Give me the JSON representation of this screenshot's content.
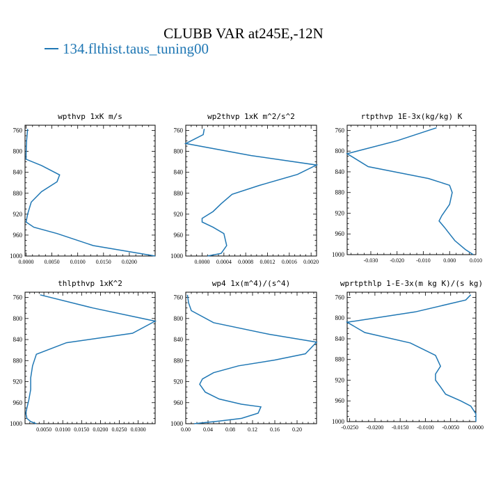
{
  "title": "CLUBB VAR at245E,-12N",
  "legend": {
    "label": "134.flthist.taus_tuning00",
    "color": "#1f77b4"
  },
  "chart_data": [
    {
      "type": "line",
      "title": "wpthvp  1xK m/s",
      "ylim": [
        1000,
        750
      ],
      "yticks": [
        760,
        800,
        840,
        880,
        920,
        960,
        1000
      ],
      "xlim": [
        -0.0002,
        0.025
      ],
      "xticks": [
        0,
        0.005,
        0.01,
        0.015,
        0.02
      ],
      "xtick_labels": [
        "0.0000",
        "0.0050",
        "0.0100",
        "0.0150",
        "0.0200"
      ],
      "series": [
        {
          "x": [
            0.0003,
            0.0001,
            0.0,
            0.0,
            0.003,
            0.0065,
            0.006,
            0.003,
            0.001,
            0.0003,
            0.0,
            0.0015,
            0.006,
            0.013,
            0.025
          ],
          "y": [
            757,
            780,
            805,
            815,
            827,
            845,
            858,
            877,
            897,
            920,
            935,
            945,
            957,
            980,
            1000
          ]
        }
      ]
    },
    {
      "type": "line",
      "title": "wp2thvp  1xK m^2/s^2",
      "ylim": [
        1000,
        750
      ],
      "yticks": [
        760,
        800,
        840,
        880,
        920,
        960,
        1000
      ],
      "xlim": [
        -0.0003,
        0.0021
      ],
      "xticks": [
        0,
        0.0004,
        0.0008,
        0.0012,
        0.0016,
        0.002
      ],
      "xtick_labels": [
        "0.0000",
        "0.0004",
        "0.0008",
        "0.0012",
        "0.0016",
        "0.0020"
      ],
      "series": [
        {
          "x": [
            4e-05,
            2e-05,
            -0.0003,
            0.0009,
            0.0021,
            0.00175,
            0.00105,
            0.00055,
            0.00035,
            0.0002,
            0.0,
            0.0,
            0.0002,
            0.0004,
            0.00045,
            0.00035,
            0.0001
          ],
          "y": [
            757,
            768,
            785,
            808,
            826,
            844,
            865,
            882,
            900,
            915,
            928,
            935,
            945,
            957,
            980,
            995,
            1000
          ]
        }
      ]
    },
    {
      "type": "line",
      "title": "rtpthvp  1E-3x(kg/kg) K",
      "ylim": [
        1000,
        750
      ],
      "yticks": [
        760,
        800,
        840,
        880,
        920,
        960,
        1000
      ],
      "xlim": [
        -0.039,
        0.01
      ],
      "xticks": [
        -0.03,
        -0.02,
        -0.01,
        0,
        0.01
      ],
      "xtick_labels": [
        "-0.030",
        "-0.020",
        "-0.010",
        "0.000",
        "0.010"
      ],
      "series": [
        {
          "x": [
            -0.005,
            -0.02,
            -0.039,
            -0.031,
            -0.008,
            0.0,
            0.001,
            0.0,
            -0.003,
            -0.004,
            -0.002,
            0.0,
            0.002,
            0.006,
            0.009
          ],
          "y": [
            755,
            780,
            805,
            830,
            853,
            866,
            880,
            903,
            925,
            935,
            947,
            960,
            973,
            990,
            1000
          ]
        }
      ]
    },
    {
      "type": "line",
      "title": "thlpthvp  1xK^2",
      "ylim": [
        1000,
        750
      ],
      "yticks": [
        760,
        800,
        840,
        880,
        920,
        960,
        1000
      ],
      "xlim": [
        0.0,
        0.0345
      ],
      "xticks": [
        0.005,
        0.01,
        0.015,
        0.02,
        0.025,
        0.03
      ],
      "xtick_labels": [
        "0.0050",
        "0.0100",
        "0.0150",
        "0.0200",
        "0.0250",
        "0.0300"
      ],
      "series": [
        {
          "x": [
            0.004,
            0.018,
            0.0345,
            0.0285,
            0.011,
            0.003,
            0.002,
            0.0015,
            0.0015,
            0.001,
            0.0005,
            0.0002,
            0.0005,
            0.0015,
            0.003
          ],
          "y": [
            755,
            780,
            805,
            828,
            846,
            868,
            890,
            913,
            935,
            955,
            970,
            980,
            990,
            996,
            1000
          ]
        }
      ]
    },
    {
      "type": "line",
      "title": "wp4  1x(m^4)/(s^4)",
      "ylim": [
        1000,
        750
      ],
      "yticks": [
        760,
        800,
        840,
        880,
        920,
        960,
        1000
      ],
      "xlim": [
        0.0,
        0.235
      ],
      "xticks": [
        0,
        0.04,
        0.08,
        0.12,
        0.16,
        0.2
      ],
      "xtick_labels": [
        "0.00",
        "0.04",
        "0.08",
        "0.12",
        "0.16",
        "0.20"
      ],
      "series": [
        {
          "x": [
            0.003,
            0.005,
            0.01,
            0.05,
            0.15,
            0.235,
            0.215,
            0.16,
            0.095,
            0.05,
            0.03,
            0.025,
            0.035,
            0.06,
            0.1,
            0.135,
            0.13,
            0.1,
            0.06,
            0.015
          ],
          "y": [
            755,
            770,
            785,
            808,
            830,
            845,
            867,
            879,
            890,
            903,
            915,
            925,
            940,
            953,
            963,
            968,
            980,
            990,
            995,
            1000
          ]
        }
      ]
    },
    {
      "type": "line",
      "title": "wprtpthlp  1-E-3x(m kg K)/(s kg)",
      "ylim": [
        1000,
        750
      ],
      "yticks": [
        760,
        800,
        840,
        880,
        920,
        960,
        1000
      ],
      "xlim": [
        -0.0255,
        0.0
      ],
      "xticks": [
        -0.025,
        -0.02,
        -0.015,
        -0.01,
        -0.005,
        0
      ],
      "xtick_labels": [
        "-0.0250",
        "-0.0200",
        "-0.0150",
        "-0.0100",
        "-0.0050",
        "0.0000"
      ],
      "series": [
        {
          "x": [
            -0.001,
            -0.002,
            -0.012,
            -0.0255,
            -0.022,
            -0.013,
            -0.008,
            -0.007,
            -0.008,
            -0.008,
            -0.007,
            -0.006,
            -0.003,
            -0.001,
            0.0,
            0.0
          ],
          "y": [
            755,
            765,
            788,
            808,
            828,
            848,
            872,
            893,
            908,
            920,
            933,
            947,
            960,
            970,
            985,
            1000
          ]
        }
      ]
    }
  ]
}
